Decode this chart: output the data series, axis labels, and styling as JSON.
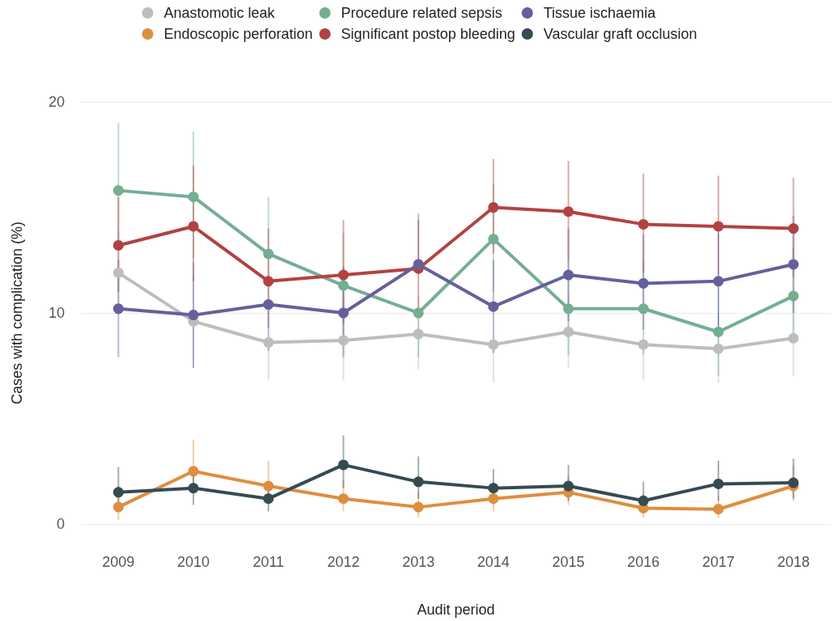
{
  "chart_data": {
    "type": "line",
    "xlabel": "Audit period",
    "ylabel": "Cases with complication (%)",
    "categories": [
      "2009",
      "2010",
      "2011",
      "2012",
      "2013",
      "2014",
      "2015",
      "2016",
      "2017",
      "2018"
    ],
    "series": [
      {
        "name": "Anastomotic leak",
        "color": "#bdbdbd",
        "values": [
          11.9,
          9.6,
          8.6,
          8.7,
          9.0,
          8.5,
          9.1,
          8.5,
          8.3,
          8.8
        ],
        "errors": [
          [
            10.0,
            13.9
          ],
          [
            7.4,
            11.8
          ],
          [
            6.8,
            8.6
          ],
          [
            6.8,
            10.6
          ],
          [
            7.3,
            10.8
          ],
          [
            6.7,
            8.5
          ],
          [
            7.4,
            10.9
          ],
          [
            6.8,
            8.5
          ],
          [
            6.7,
            10.0
          ],
          [
            7.0,
            10.6
          ]
        ]
      },
      {
        "name": "Endoscopic perforation",
        "color": "#df8e3e",
        "values": [
          0.8,
          2.5,
          1.8,
          1.2,
          0.8,
          1.2,
          1.5,
          0.75,
          0.7,
          1.8
        ],
        "errors": [
          [
            0.2,
            1.8
          ],
          [
            1.5,
            4.0
          ],
          [
            1.0,
            3.0
          ],
          [
            0.6,
            2.1
          ],
          [
            0.3,
            1.5
          ],
          [
            0.6,
            2.0
          ],
          [
            0.9,
            2.3
          ],
          [
            0.3,
            1.4
          ],
          [
            0.3,
            1.3
          ],
          [
            1.1,
            2.8
          ]
        ]
      },
      {
        "name": "Procedure related sepsis",
        "color": "#74ae93",
        "values": [
          15.8,
          15.5,
          12.8,
          11.3,
          10.0,
          13.5,
          10.2,
          10.2,
          9.1,
          10.8
        ],
        "errors": [
          [
            13.0,
            19.0
          ],
          [
            12.6,
            18.6
          ],
          [
            10.2,
            15.5
          ],
          [
            8.9,
            13.8
          ],
          [
            7.9,
            10.0
          ],
          [
            11.0,
            16.1
          ],
          [
            8.0,
            12.5
          ],
          [
            8.0,
            12.5
          ],
          [
            7.0,
            11.3
          ],
          [
            8.6,
            13.1
          ]
        ]
      },
      {
        "name": "Significant postop bleeding",
        "color": "#b24241",
        "values": [
          13.2,
          14.1,
          11.5,
          11.8,
          12.1,
          15.0,
          14.8,
          14.2,
          14.1,
          14.0
        ],
        "errors": [
          [
            11.0,
            15.5
          ],
          [
            11.5,
            17.0
          ],
          [
            9.3,
            14.0
          ],
          [
            9.5,
            14.4
          ],
          [
            9.8,
            14.4
          ],
          [
            12.8,
            17.3
          ],
          [
            12.5,
            17.2
          ],
          [
            11.9,
            16.6
          ],
          [
            11.8,
            16.5
          ],
          [
            11.7,
            16.4
          ]
        ]
      },
      {
        "name": "Tissue ischaemia",
        "color": "#65609c",
        "values": [
          10.2,
          9.9,
          10.4,
          10.0,
          12.3,
          10.3,
          11.8,
          11.4,
          11.5,
          12.3
        ],
        "errors": [
          [
            7.9,
            12.5
          ],
          [
            7.4,
            12.4
          ],
          [
            8.2,
            10.4
          ],
          [
            7.9,
            12.2
          ],
          [
            12.3,
            14.7
          ],
          [
            8.1,
            12.5
          ],
          [
            9.6,
            14.0
          ],
          [
            9.2,
            13.7
          ],
          [
            9.3,
            13.8
          ],
          [
            10.0,
            14.6
          ]
        ]
      },
      {
        "name": "Vascular graft occlusion",
        "color": "#354b52",
        "values": [
          1.5,
          1.7,
          1.2,
          2.8,
          2.0,
          1.7,
          1.8,
          1.1,
          1.9,
          1.95
        ],
        "errors": [
          [
            0.9,
            2.7
          ],
          [
            0.9,
            2.7
          ],
          [
            0.6,
            2.0
          ],
          [
            1.7,
            4.2
          ],
          [
            1.2,
            3.2
          ],
          [
            1.0,
            2.6
          ],
          [
            1.1,
            2.8
          ],
          [
            0.5,
            2.0
          ],
          [
            1.1,
            3.0
          ],
          [
            1.2,
            3.1
          ]
        ]
      }
    ],
    "ylim": [
      0,
      20
    ],
    "yticks": [
      0,
      10,
      20
    ],
    "grid": "y",
    "legend": "top",
    "marker": "circle",
    "line_style": "solid"
  }
}
